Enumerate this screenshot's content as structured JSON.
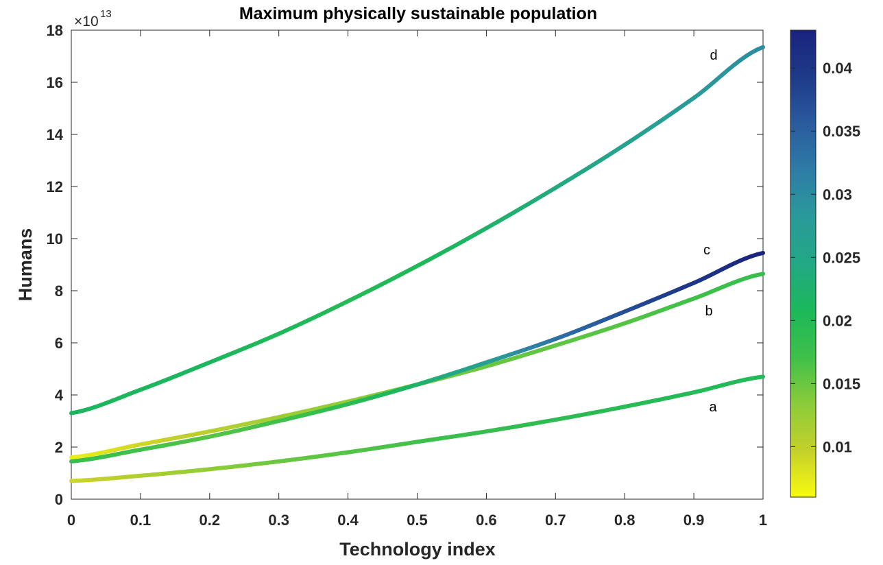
{
  "chart_data": {
    "type": "line",
    "title": "Maximum physically sustainable population",
    "xlabel": "Technology index",
    "ylabel": "Humans",
    "y_exponent_base": "×10",
    "y_exponent_power": "13",
    "xlim": [
      0,
      1
    ],
    "ylim": [
      0,
      18
    ],
    "x_ticks": [
      0,
      0.1,
      0.2,
      0.3,
      0.4,
      0.5,
      0.6,
      0.7,
      0.8,
      0.9,
      1
    ],
    "x_tick_labels": [
      "0",
      "0.1",
      "0.2",
      "0.3",
      "0.4",
      "0.5",
      "0.6",
      "0.7",
      "0.8",
      "0.9",
      "1"
    ],
    "y_ticks": [
      0,
      2,
      4,
      6,
      8,
      10,
      12,
      14,
      16,
      18
    ],
    "y_tick_labels": [
      "0",
      "2",
      "4",
      "6",
      "8",
      "10",
      "12",
      "14",
      "16",
      "18"
    ],
    "grid": false,
    "x": [
      0,
      0.1,
      0.2,
      0.3,
      0.4,
      0.5,
      0.6,
      0.7,
      0.8,
      0.9,
      1
    ],
    "series": [
      {
        "name": "a",
        "values": [
          0.7,
          0.9,
          1.15,
          1.45,
          1.8,
          2.2,
          2.6,
          3.05,
          3.55,
          4.1,
          4.7
        ],
        "colorvals": [
          0.009,
          0.011,
          0.013,
          0.015,
          0.016,
          0.017,
          0.018,
          0.019,
          0.0195,
          0.02,
          0.02
        ]
      },
      {
        "name": "b",
        "values": [
          1.6,
          2.1,
          2.6,
          3.15,
          3.75,
          4.4,
          5.1,
          5.9,
          6.75,
          7.7,
          8.65
        ],
        "colorvals": [
          0.007,
          0.009,
          0.0105,
          0.012,
          0.013,
          0.0145,
          0.015,
          0.0155,
          0.016,
          0.017,
          0.018
        ]
      },
      {
        "name": "c",
        "values": [
          1.45,
          1.9,
          2.4,
          3.0,
          3.65,
          4.4,
          5.25,
          6.15,
          7.2,
          8.3,
          9.45
        ],
        "colorvals": [
          0.018,
          0.017,
          0.016,
          0.017,
          0.019,
          0.022,
          0.027,
          0.033,
          0.037,
          0.04,
          0.043
        ]
      },
      {
        "name": "d",
        "values": [
          3.3,
          4.2,
          5.25,
          6.35,
          7.6,
          8.95,
          10.4,
          11.95,
          13.6,
          15.4,
          17.35
        ],
        "colorvals": [
          0.021,
          0.021,
          0.021,
          0.0205,
          0.02,
          0.0205,
          0.022,
          0.024,
          0.026,
          0.028,
          0.03
        ]
      }
    ],
    "colorbar": {
      "min": 0.006,
      "max": 0.043,
      "ticks": [
        0.01,
        0.015,
        0.02,
        0.025,
        0.03,
        0.035,
        0.04
      ],
      "tick_labels": [
        "0.01",
        "0.015",
        "0.02",
        "0.025",
        "0.03",
        "0.035",
        "0.04"
      ],
      "colormap": "parula-reversed",
      "colormap_stops": [
        "#f9fb0e",
        "#c4d02b",
        "#8bcc3a",
        "#3ec04a",
        "#1cb85a",
        "#22a884",
        "#2a9a9a",
        "#2e7ca6",
        "#2a5b9e",
        "#1e3a88",
        "#1a237e"
      ]
    }
  }
}
